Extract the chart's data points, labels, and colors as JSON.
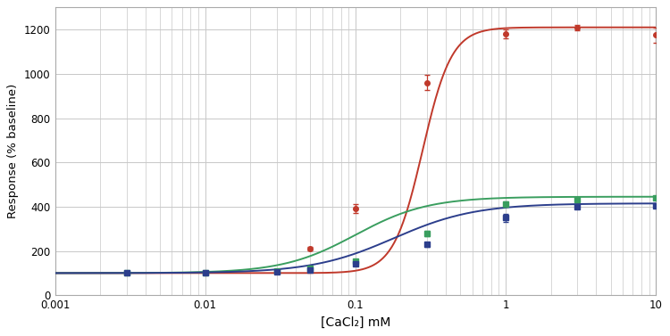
{
  "title": "",
  "xlabel": "[CaCl₂] mM",
  "ylabel": "Response (% baseline)",
  "ylim": [
    0,
    1300
  ],
  "yticks": [
    0,
    200,
    400,
    600,
    800,
    1000,
    1200
  ],
  "background_color": "#ffffff",
  "grid_color": "#c8c8c8",
  "curves": [
    {
      "name": "red",
      "line_color": "#c0392b",
      "Emin": 100,
      "Emax": 1210,
      "EC50": 0.28,
      "Hill": 4.5,
      "data_x": [
        0.003,
        0.003,
        0.01,
        0.03,
        0.05,
        0.1,
        0.3,
        1.0,
        3.0,
        10.0
      ],
      "data_y": [
        100,
        100,
        100,
        105,
        210,
        390,
        960,
        1180,
        1210,
        1175
      ],
      "data_yerr": [
        4,
        4,
        4,
        4,
        8,
        20,
        35,
        20,
        12,
        35
      ],
      "marker": "o",
      "marker_color": "#c0392b",
      "marker_size": 4
    },
    {
      "name": "green",
      "line_color": "#3a9e5f",
      "Emin": 100,
      "Emax": 445,
      "EC50": 0.1,
      "Hill": 1.8,
      "data_x": [
        0.003,
        0.01,
        0.03,
        0.05,
        0.1,
        0.3,
        1.0,
        3.0,
        10.0
      ],
      "data_y": [
        100,
        100,
        110,
        120,
        155,
        280,
        410,
        430,
        440
      ],
      "data_yerr": [
        4,
        4,
        4,
        5,
        8,
        12,
        12,
        8,
        8
      ],
      "marker": "s",
      "marker_color": "#3a9e5f",
      "marker_size": 4
    },
    {
      "name": "blue",
      "line_color": "#2c3e8c",
      "Emin": 100,
      "Emax": 415,
      "EC50": 0.18,
      "Hill": 1.6,
      "data_x": [
        0.003,
        0.01,
        0.03,
        0.05,
        0.1,
        0.3,
        1.0,
        3.0,
        10.0
      ],
      "data_y": [
        100,
        100,
        105,
        115,
        140,
        230,
        350,
        400,
        405
      ],
      "data_yerr": [
        4,
        4,
        4,
        5,
        7,
        10,
        18,
        10,
        10
      ],
      "marker": "s",
      "marker_color": "#2c3e8c",
      "marker_size": 4
    }
  ]
}
